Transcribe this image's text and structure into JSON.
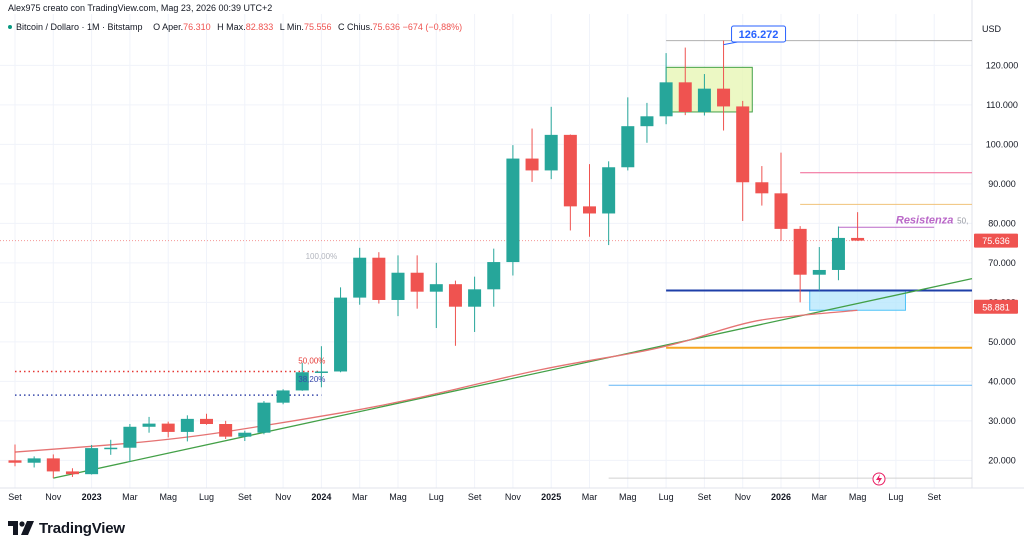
{
  "header": {
    "author_line": "Alex975 creato con TradingView.com, Mag 23, 2026 00:39 UTC+2",
    "symbol": "Bitcoin / Dollaro · 1M · Bitstamp",
    "open_label": "O",
    "open_name": "Aper.",
    "open_value": "76.310",
    "high_label": "H",
    "high_name": "Max.",
    "high_value": "82.833",
    "low_label": "L",
    "low_name": "Min.",
    "low_value": "75.556",
    "close_label": "C",
    "close_name": "Chius.",
    "close_value": "75.636",
    "change": "−674 (−0,88%)"
  },
  "axis": {
    "currency": "USD"
  },
  "footer": {
    "brand": "TradingView"
  },
  "colors": {
    "up": "#26a69a",
    "down": "#ef5350",
    "grid": "#f0f3fa",
    "trend": "#43a047",
    "ma": "#e57373",
    "resistance": "#ba68c8",
    "support_blue": "#1e3fa8",
    "level_orange": "#f5a623",
    "level_light_blue": "#64b5f6",
    "level_red": "#f06292",
    "level_yellow": "#f0c27a",
    "zone_top": "#e6f5b0",
    "zone_bottom": "#b3e5fc"
  },
  "chart_data": {
    "type": "candlestick",
    "symbol": "Bitcoin / Dollaro",
    "interval": "1M",
    "exchange": "Bitstamp",
    "y_axis": {
      "ylim": [
        13000,
        133000
      ],
      "ticks": [
        20000,
        30000,
        40000,
        50000,
        60000,
        70000,
        80000,
        90000,
        100000,
        110000,
        120000
      ],
      "tick_labels": [
        "20.000",
        "30.000",
        "40.000",
        "50.000",
        "60.000",
        "70.000",
        "80.000",
        "90.000",
        "100.000",
        "110.000",
        "120.000"
      ]
    },
    "x_axis": {
      "labels": [
        {
          "index": 0,
          "label": "Set"
        },
        {
          "index": 2,
          "label": "Nov"
        },
        {
          "index": 4,
          "label": "2023"
        },
        {
          "index": 6,
          "label": "Mar"
        },
        {
          "index": 8,
          "label": "Mag"
        },
        {
          "index": 10,
          "label": "Lug"
        },
        {
          "index": 12,
          "label": "Set"
        },
        {
          "index": 14,
          "label": "Nov"
        },
        {
          "index": 16,
          "label": "2024"
        },
        {
          "index": 18,
          "label": "Mar"
        },
        {
          "index": 20,
          "label": "Mag"
        },
        {
          "index": 22,
          "label": "Lug"
        },
        {
          "index": 24,
          "label": "Set"
        },
        {
          "index": 26,
          "label": "Nov"
        },
        {
          "index": 28,
          "label": "2025"
        },
        {
          "index": 30,
          "label": "Mar"
        },
        {
          "index": 32,
          "label": "Mag"
        },
        {
          "index": 34,
          "label": "Lug"
        },
        {
          "index": 36,
          "label": "Set"
        },
        {
          "index": 38,
          "label": "Nov"
        },
        {
          "index": 40,
          "label": "2026"
        },
        {
          "index": 42,
          "label": "Mar"
        },
        {
          "index": 44,
          "label": "Mag"
        },
        {
          "index": 46,
          "label": "Lug"
        },
        {
          "index": 48,
          "label": "Set"
        }
      ]
    },
    "candles": [
      {
        "o": 20000,
        "h": 24000,
        "l": 18500,
        "c": 19400
      },
      {
        "o": 19400,
        "h": 21000,
        "l": 18200,
        "c": 20500
      },
      {
        "o": 20500,
        "h": 21500,
        "l": 15500,
        "c": 17200
      },
      {
        "o": 17200,
        "h": 18000,
        "l": 15800,
        "c": 16500
      },
      {
        "o": 16500,
        "h": 23900,
        "l": 16400,
        "c": 23100
      },
      {
        "o": 23100,
        "h": 25200,
        "l": 21400,
        "c": 23200
      },
      {
        "o": 23200,
        "h": 29200,
        "l": 19600,
        "c": 28500
      },
      {
        "o": 28500,
        "h": 31000,
        "l": 27000,
        "c": 29300
      },
      {
        "o": 29300,
        "h": 29800,
        "l": 25800,
        "c": 27200
      },
      {
        "o": 27200,
        "h": 31400,
        "l": 24800,
        "c": 30500
      },
      {
        "o": 30500,
        "h": 31800,
        "l": 29000,
        "c": 29200
      },
      {
        "o": 29200,
        "h": 30000,
        "l": 25400,
        "c": 26000
      },
      {
        "o": 26000,
        "h": 27500,
        "l": 24900,
        "c": 27000
      },
      {
        "o": 27000,
        "h": 35000,
        "l": 26600,
        "c": 34600
      },
      {
        "o": 34600,
        "h": 38000,
        "l": 34200,
        "c": 37700
      },
      {
        "o": 37700,
        "h": 44700,
        "l": 37600,
        "c": 42300
      },
      {
        "o": 42300,
        "h": 48900,
        "l": 38500,
        "c": 42500
      },
      {
        "o": 42500,
        "h": 63800,
        "l": 42300,
        "c": 61200
      },
      {
        "o": 61200,
        "h": 73800,
        "l": 59400,
        "c": 71300
      },
      {
        "o": 71300,
        "h": 72700,
        "l": 59700,
        "c": 60600
      },
      {
        "o": 60600,
        "h": 71900,
        "l": 56500,
        "c": 67500
      },
      {
        "o": 67500,
        "h": 71900,
        "l": 58400,
        "c": 62700
      },
      {
        "o": 62700,
        "h": 70000,
        "l": 53500,
        "c": 64600
      },
      {
        "o": 64600,
        "h": 65500,
        "l": 49000,
        "c": 58900
      },
      {
        "o": 58900,
        "h": 66500,
        "l": 52500,
        "c": 63300
      },
      {
        "o": 63300,
        "h": 73600,
        "l": 58900,
        "c": 70200
      },
      {
        "o": 70200,
        "h": 99800,
        "l": 66800,
        "c": 96400
      },
      {
        "o": 96400,
        "h": 104000,
        "l": 90500,
        "c": 93400
      },
      {
        "o": 93400,
        "h": 109500,
        "l": 91200,
        "c": 102400
      },
      {
        "o": 102400,
        "h": 102500,
        "l": 78200,
        "c": 84300
      },
      {
        "o": 84300,
        "h": 95000,
        "l": 76600,
        "c": 82500
      },
      {
        "o": 82500,
        "h": 95700,
        "l": 74500,
        "c": 94200
      },
      {
        "o": 94200,
        "h": 111900,
        "l": 93400,
        "c": 104600
      },
      {
        "o": 104600,
        "h": 110500,
        "l": 100400,
        "c": 107100
      },
      {
        "o": 107100,
        "h": 123100,
        "l": 105100,
        "c": 115700
      },
      {
        "o": 115700,
        "h": 124500,
        "l": 107400,
        "c": 108200
      },
      {
        "o": 108200,
        "h": 117800,
        "l": 107300,
        "c": 114100
      },
      {
        "o": 114100,
        "h": 126272,
        "l": 103500,
        "c": 109600
      },
      {
        "o": 109600,
        "h": 111000,
        "l": 80600,
        "c": 90400
      },
      {
        "o": 90400,
        "h": 94500,
        "l": 84500,
        "c": 87600
      },
      {
        "o": 87600,
        "h": 97900,
        "l": 75600,
        "c": 78600
      },
      {
        "o": 78600,
        "h": 79300,
        "l": 60000,
        "c": 67000
      },
      {
        "o": 67000,
        "h": 74000,
        "l": 63000,
        "c": 68200
      },
      {
        "o": 68200,
        "h": 79200,
        "l": 65600,
        "c": 76310
      },
      {
        "o": 76310,
        "h": 82833,
        "l": 75556,
        "c": 75636
      }
    ],
    "moving_average": [
      [
        0,
        22100
      ],
      [
        8,
        25000
      ],
      [
        14,
        29500
      ],
      [
        20,
        34500
      ],
      [
        26,
        41500
      ],
      [
        29,
        44500
      ],
      [
        34,
        48500
      ],
      [
        38,
        54800
      ],
      [
        40,
        56300
      ],
      [
        44,
        58000
      ]
    ],
    "trendline": [
      [
        2,
        15500
      ],
      [
        50,
        66000
      ]
    ],
    "horizontal_levels": [
      {
        "name": "ath-level",
        "price": 126272,
        "color": "#b0b0b0",
        "from": 34,
        "to": 50
      },
      {
        "name": "red-level",
        "price": 92800,
        "color": "#f06292",
        "from": 41,
        "to": 50
      },
      {
        "name": "yellow-level",
        "price": 84800,
        "color": "#f0c27a",
        "from": 41,
        "to": 50
      },
      {
        "name": "resistance-level",
        "price": 79000,
        "color": "#ba68c8",
        "from": 43,
        "to": 48
      },
      {
        "name": "support-blue-level",
        "price": 63000,
        "color": "#1e3fa8",
        "from": 34,
        "to": 50
      },
      {
        "name": "orange-level",
        "price": 48500,
        "color": "#f5a623",
        "from": 34,
        "to": 50
      },
      {
        "name": "light-blue-level",
        "price": 39000,
        "color": "#64b5f6",
        "from": 31,
        "to": 50
      },
      {
        "name": "bottom-level",
        "price": 15500,
        "color": "#d0d0d0",
        "from": 31,
        "to": 50
      },
      {
        "name": "fib-50-left",
        "price": 42500,
        "color": "#e53935",
        "from": 0,
        "to": 16,
        "dotted": true
      },
      {
        "name": "fib-38-left",
        "price": 36500,
        "color": "#3949ab",
        "from": 0,
        "to": 16,
        "dotted": true
      }
    ],
    "zones": [
      {
        "name": "top-zone",
        "x1": 34,
        "x2": 38.5,
        "y1": 108200,
        "y2": 119500,
        "color": "#e6f5b0",
        "border": "#43a047"
      },
      {
        "name": "bottom-zone",
        "x1": 41.5,
        "x2": 46.5,
        "y1": 58000,
        "y2": 63000,
        "color": "#b3e5fc",
        "border": "#4fc3f7"
      }
    ],
    "annotations": [
      {
        "name": "ath-callout",
        "text": "126.272",
        "index": 37,
        "price": 126272
      },
      {
        "name": "resistance-label",
        "text": "Resistenza",
        "index": 47.5,
        "price": 79000,
        "color": "#ba68c8"
      },
      {
        "name": "resistance-pct",
        "text": "50,",
        "index": 49.2,
        "price": 79000
      },
      {
        "name": "fib-100-label",
        "text": "100,00%",
        "index": 16,
        "price": 71000
      },
      {
        "name": "fib-50-label",
        "text": "50,00%",
        "index": 15.5,
        "price": 44500
      },
      {
        "name": "fib-38-label",
        "text": "38,20%",
        "index": 15.5,
        "price": 39800
      }
    ],
    "price_tags": [
      {
        "name": "last-price-tag",
        "text": "75.636",
        "price": 75636,
        "bg": "#ef5350"
      },
      {
        "name": "ma-price-tag",
        "text": "58.881",
        "price": 58881,
        "bg": "#ef5350"
      }
    ]
  }
}
